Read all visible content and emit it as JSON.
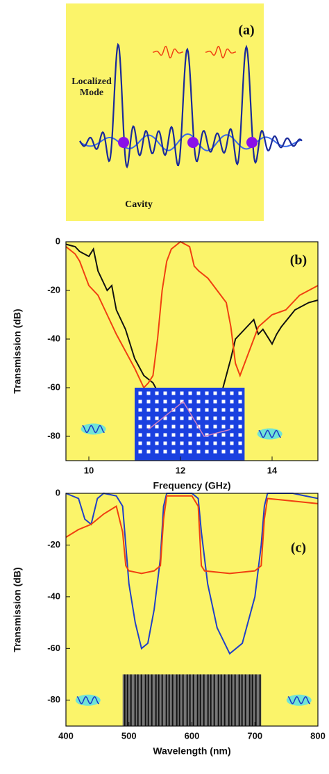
{
  "schematic": {
    "panel_label": "(a)",
    "labels": [
      "Localized Mode",
      "Cavity"
    ]
  },
  "chart_data": [
    {
      "type": "line",
      "panel_label": "(b)",
      "x_label": "Frequency (GHz)",
      "y_label": "Transmission (dB)",
      "xlim": [
        9.5,
        15
      ],
      "xticks": [
        10,
        12,
        14
      ],
      "ylim": [
        -90,
        0
      ],
      "yticks": [
        0,
        -20,
        -40,
        -60,
        -80
      ],
      "series": [
        {
          "color": "#111111",
          "x": [
            9.5,
            9.7,
            9.8,
            10.0,
            10.1,
            10.2,
            10.4,
            10.5,
            10.6,
            10.8,
            10.9,
            11.0,
            11.2,
            11.4,
            11.6,
            12.0,
            12.5,
            12.9,
            13.0,
            13.1,
            13.2,
            13.4,
            13.6,
            13.7,
            13.8,
            14.0,
            14.1,
            14.2,
            14.5,
            14.8,
            15.0
          ],
          "values": [
            -1,
            -2,
            -4,
            -6,
            -3,
            -12,
            -20,
            -18,
            -28,
            -36,
            -42,
            -48,
            -55,
            -58,
            -65,
            -65,
            -65,
            -62,
            -55,
            -48,
            -40,
            -36,
            -32,
            -38,
            -36,
            -42,
            -38,
            -35,
            -28,
            -25,
            -24
          ]
        },
        {
          "color": "#f04010",
          "x": [
            9.5,
            9.7,
            9.8,
            10.0,
            10.2,
            10.4,
            10.6,
            10.8,
            11.0,
            11.2,
            11.3,
            11.4,
            11.5,
            11.6,
            11.7,
            11.8,
            12.0,
            12.2,
            12.3,
            12.4,
            12.6,
            12.8,
            13.0,
            13.1,
            13.2,
            13.3,
            13.4,
            13.5,
            13.7,
            14.0,
            14.3,
            14.6,
            15.0
          ],
          "values": [
            -2,
            -5,
            -8,
            -18,
            -22,
            -30,
            -38,
            -45,
            -52,
            -60,
            -58,
            -55,
            -40,
            -20,
            -8,
            -3,
            0,
            -2,
            -10,
            -12,
            -15,
            -20,
            -25,
            -35,
            -50,
            -55,
            -50,
            -45,
            -35,
            -30,
            -28,
            -22,
            -18
          ]
        }
      ]
    },
    {
      "type": "line",
      "panel_label": "(c)",
      "x_label": "Wavelength (nm)",
      "y_label": "Transmission (dB)",
      "xlim": [
        400,
        800
      ],
      "xticks": [
        400,
        500,
        600,
        700,
        800
      ],
      "ylim": [
        -90,
        0
      ],
      "yticks": [
        0,
        -20,
        -40,
        -60,
        -80
      ],
      "series": [
        {
          "color": "#2040c8",
          "x": [
            400,
            420,
            430,
            440,
            450,
            460,
            480,
            490,
            495,
            500,
            510,
            520,
            530,
            540,
            550,
            555,
            560,
            600,
            610,
            615,
            625,
            640,
            660,
            680,
            700,
            710,
            715,
            720,
            760,
            780,
            800
          ],
          "values": [
            0,
            -2,
            -10,
            -12,
            -2,
            0,
            -1,
            -5,
            -20,
            -35,
            -50,
            -60,
            -58,
            -45,
            -25,
            -5,
            0,
            0,
            -2,
            -15,
            -35,
            -52,
            -62,
            -58,
            -40,
            -20,
            -5,
            0,
            0,
            -1,
            -2
          ]
        },
        {
          "color": "#f04010",
          "x": [
            400,
            420,
            440,
            460,
            480,
            490,
            495,
            500,
            520,
            540,
            550,
            555,
            560,
            600,
            610,
            615,
            620,
            660,
            700,
            710,
            715,
            720,
            760,
            800
          ],
          "values": [
            -17,
            -14,
            -12,
            -8,
            -5,
            -15,
            -28,
            -30,
            -31,
            -30,
            -28,
            -10,
            -1,
            -1,
            -5,
            -28,
            -30,
            -31,
            -30,
            -28,
            -10,
            -2,
            -3,
            -4
          ]
        }
      ]
    }
  ]
}
